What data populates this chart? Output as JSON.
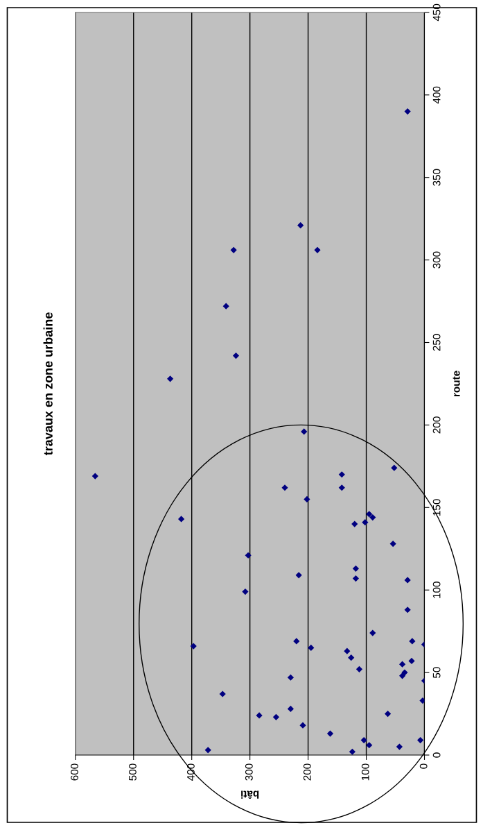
{
  "chart_data": {
    "type": "scatter",
    "title": "travaux en zone urbaine",
    "xlabel": "bâti",
    "ylabel": "route",
    "x": [
      29,
      213,
      328,
      184,
      341,
      324,
      437,
      566,
      207,
      52,
      142,
      240,
      142,
      202,
      418,
      95,
      89,
      120,
      102,
      54,
      303,
      216,
      118,
      118,
      29,
      308,
      29,
      89,
      397,
      220,
      21,
      0,
      195,
      133,
      126,
      22,
      38,
      112,
      34,
      38,
      230,
      0,
      347,
      3,
      230,
      63,
      284,
      255,
      209,
      162,
      104,
      7,
      95,
      43,
      372,
      124
    ],
    "series": [
      {
        "color": "#000080",
        "values": [
          390,
          321,
          306,
          306,
          272,
          242,
          228,
          169,
          196,
          174,
          170,
          162,
          162,
          155,
          143,
          146,
          144,
          140,
          141,
          128,
          121,
          109,
          113,
          107,
          106,
          99,
          88,
          74,
          66,
          69,
          69,
          67,
          65,
          63,
          59,
          57,
          55,
          52,
          50,
          48,
          47,
          45,
          37,
          33,
          28,
          25,
          24,
          23,
          18,
          13,
          9,
          9,
          6,
          5,
          3,
          2
        ]
      }
    ],
    "xlim": [
      600,
      0
    ],
    "xticks": [
      600,
      500,
      400,
      300,
      200,
      100,
      0
    ],
    "ylim": [
      0,
      450
    ],
    "yticks": [
      0,
      50,
      100,
      150,
      200,
      250,
      300,
      350,
      400,
      450
    ],
    "grid": "x",
    "marker": "diamond"
  }
}
